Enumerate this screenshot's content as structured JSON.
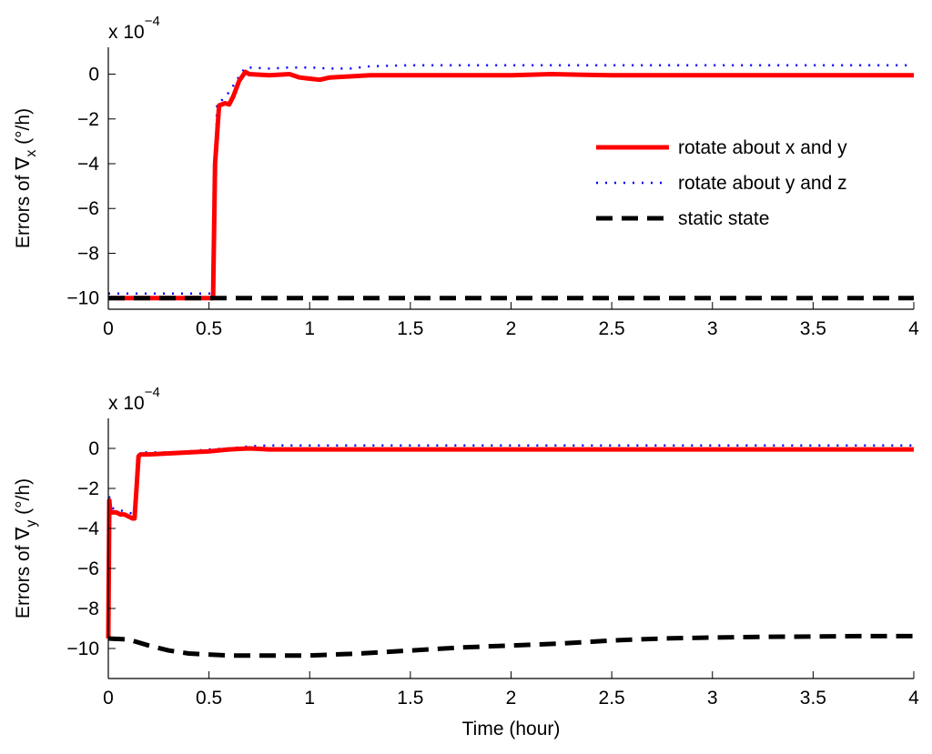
{
  "chart_data": [
    {
      "type": "line",
      "scale_label": "x 10",
      "scale_exponent": "−4",
      "ylabel_prefix": "Errors of ∇",
      "ylabel_sub": "x",
      "ylabel_suffix": " (°/h)",
      "xlabel": "",
      "xlim": [
        0,
        4
      ],
      "ylim": [
        -10.5,
        1.2
      ],
      "xticks": [
        0,
        0.5,
        1,
        1.5,
        2,
        2.5,
        3,
        3.5,
        4
      ],
      "xtick_labels": [
        "0",
        "0.5",
        "1",
        "1.5",
        "2",
        "2.5",
        "3",
        "3.5",
        "4"
      ],
      "yticks": [
        0,
        -2,
        -4,
        -6,
        -8,
        -10
      ],
      "ytick_labels": [
        "0",
        "−2",
        "−4",
        "−6",
        "−8",
        "−10"
      ],
      "legend": {
        "position": "right",
        "entries": [
          {
            "label": "rotate about x and y"
          },
          {
            "label": "rotate about y and z"
          },
          {
            "label": "static state"
          }
        ]
      },
      "series": [
        {
          "name": "rotate about y and z",
          "color": "#0000ff",
          "style": "dotted",
          "x": [
            0,
            0.5,
            0.52,
            0.53,
            0.54,
            0.56,
            0.6,
            0.65,
            0.68,
            0.7,
            0.8,
            0.9,
            1.0,
            1.1,
            1.2,
            1.3,
            1.5,
            2.0,
            2.5,
            3.0,
            3.5,
            4.0
          ],
          "y": [
            -9.8,
            -9.8,
            -9.8,
            -5.0,
            -1.3,
            -1.2,
            -0.8,
            -0.1,
            0.3,
            0.3,
            0.25,
            0.3,
            0.3,
            0.25,
            0.25,
            0.35,
            0.4,
            0.4,
            0.4,
            0.4,
            0.4,
            0.4
          ]
        },
        {
          "name": "rotate about x and y",
          "color": "#ff0000",
          "style": "solid",
          "x": [
            0,
            0.1,
            0.2,
            0.3,
            0.4,
            0.5,
            0.52,
            0.53,
            0.55,
            0.58,
            0.6,
            0.62,
            0.65,
            0.68,
            0.7,
            0.8,
            0.9,
            0.95,
            1.0,
            1.05,
            1.1,
            1.2,
            1.3,
            1.5,
            2.0,
            2.2,
            2.5,
            3.0,
            3.5,
            4.0
          ],
          "y": [
            -10.0,
            -10.0,
            -10.0,
            -10.0,
            -10.0,
            -10.0,
            -10.0,
            -4.0,
            -1.4,
            -1.3,
            -1.35,
            -1.0,
            -0.3,
            0.1,
            0.0,
            -0.05,
            0.0,
            -0.15,
            -0.2,
            -0.25,
            -0.15,
            -0.1,
            -0.05,
            -0.05,
            -0.05,
            0.0,
            -0.05,
            -0.05,
            -0.05,
            -0.05
          ]
        },
        {
          "name": "static state",
          "color": "#000000",
          "style": "dashed",
          "x": [
            0,
            4
          ],
          "y": [
            -10.0,
            -10.0
          ]
        }
      ]
    },
    {
      "type": "line",
      "scale_label": "x 10",
      "scale_exponent": "−4",
      "ylabel_prefix": "Errors of ∇",
      "ylabel_sub": "y",
      "ylabel_suffix": " (°/h)",
      "xlabel": "Time (hour)",
      "xlim": [
        0,
        4
      ],
      "ylim": [
        -11.5,
        1.5
      ],
      "xticks": [
        0,
        0.5,
        1,
        1.5,
        2,
        2.5,
        3,
        3.5,
        4
      ],
      "xtick_labels": [
        "0",
        "0.5",
        "1",
        "1.5",
        "2",
        "2.5",
        "3",
        "3.5",
        "4"
      ],
      "yticks": [
        0,
        -2,
        -4,
        -6,
        -8,
        -10
      ],
      "ytick_labels": [
        "0",
        "−2",
        "−4",
        "−6",
        "−8",
        "−10"
      ],
      "series": [
        {
          "name": "rotate about y and z",
          "color": "#0000ff",
          "style": "dotted",
          "x": [
            0,
            0.005,
            0.01,
            0.02,
            0.04,
            0.06,
            0.1,
            0.13,
            0.14,
            0.15,
            0.16,
            0.2,
            0.3,
            0.4,
            0.5,
            0.6,
            0.7,
            0.8,
            1.0,
            1.2,
            1.5,
            2.0,
            3.0,
            4.0
          ],
          "y": [
            -9.3,
            -2.3,
            -2.8,
            -3.0,
            -3.0,
            -3.1,
            -3.2,
            -3.3,
            -2.0,
            -0.3,
            -0.2,
            -0.2,
            -0.2,
            -0.15,
            -0.05,
            0.0,
            0.1,
            0.15,
            0.15,
            0.15,
            0.15,
            0.15,
            0.15,
            0.15
          ]
        },
        {
          "name": "rotate about x and y",
          "color": "#ff0000",
          "style": "solid",
          "x": [
            0,
            0.005,
            0.01,
            0.02,
            0.04,
            0.06,
            0.08,
            0.1,
            0.12,
            0.13,
            0.14,
            0.15,
            0.16,
            0.2,
            0.3,
            0.4,
            0.5,
            0.6,
            0.7,
            0.8,
            1.0,
            1.3,
            1.5,
            2.0,
            3.0,
            4.0
          ],
          "y": [
            -9.5,
            -2.6,
            -3.2,
            -3.2,
            -3.2,
            -3.3,
            -3.3,
            -3.4,
            -3.5,
            -3.5,
            -2.0,
            -0.4,
            -0.3,
            -0.3,
            -0.25,
            -0.2,
            -0.15,
            -0.05,
            0.0,
            -0.05,
            -0.05,
            -0.05,
            -0.05,
            -0.05,
            -0.05,
            -0.05
          ]
        },
        {
          "name": "static state",
          "color": "#000000",
          "style": "dashed",
          "x": [
            0,
            0.1,
            0.2,
            0.3,
            0.4,
            0.5,
            0.6,
            0.8,
            1.0,
            1.25,
            1.5,
            1.75,
            2.0,
            2.25,
            2.5,
            2.75,
            3.0,
            3.25,
            3.5,
            3.75,
            4.0
          ],
          "y": [
            -9.5,
            -9.55,
            -9.85,
            -10.1,
            -10.25,
            -10.3,
            -10.35,
            -10.35,
            -10.35,
            -10.25,
            -10.1,
            -9.95,
            -9.85,
            -9.75,
            -9.6,
            -9.5,
            -9.45,
            -9.42,
            -9.4,
            -9.38,
            -9.38
          ]
        }
      ]
    }
  ]
}
